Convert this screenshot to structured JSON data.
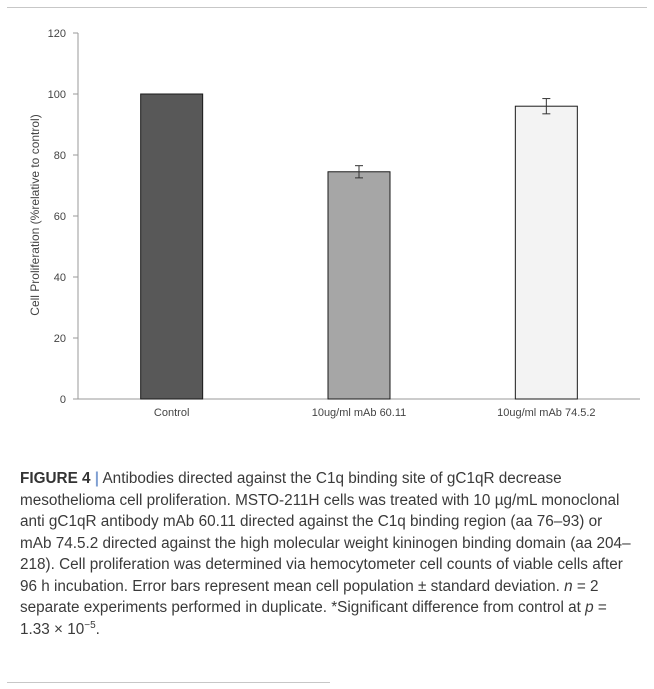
{
  "chart_data": {
    "type": "bar",
    "categories": [
      "Control",
      "10ug/ml mAb 60.11",
      "10ug/ml mAb 74.5.2"
    ],
    "values": [
      100,
      74.5,
      96
    ],
    "errors": [
      0,
      2,
      2.5
    ],
    "bar_colors": [
      "#585858",
      "#a6a6a6",
      "#f3f3f3"
    ],
    "ylabel": "Cell Proliferation (%relative to control)",
    "ylim": [
      0,
      120
    ],
    "yticks": [
      0,
      20,
      40,
      60,
      80,
      100,
      120
    ],
    "grid": false
  },
  "caption": {
    "label": "FIGURE 4",
    "separator": "|",
    "text_1": " Antibodies directed against the C1q binding site of gC1qR decrease mesothelioma cell proliferation. MSTO-211H cells was treated with 10 µg/mL monoclonal anti gC1qR antibody mAb 60.11 directed against the C1q binding region (aa 76–93) or mAb 74.5.2 directed against the high molecular weight kininogen binding domain (aa 204–218). Cell proliferation was determined via hemocytometer cell counts of viable cells after 96 h incubation. Error bars represent mean cell population ± standard deviation. ",
    "n_var": "n",
    "text_2": " = 2 separate experiments performed in duplicate. *Significant difference from control at ",
    "p_var": "p",
    "text_3": " = 1.33 × 10",
    "exponent": "−5",
    "text_4": "."
  }
}
